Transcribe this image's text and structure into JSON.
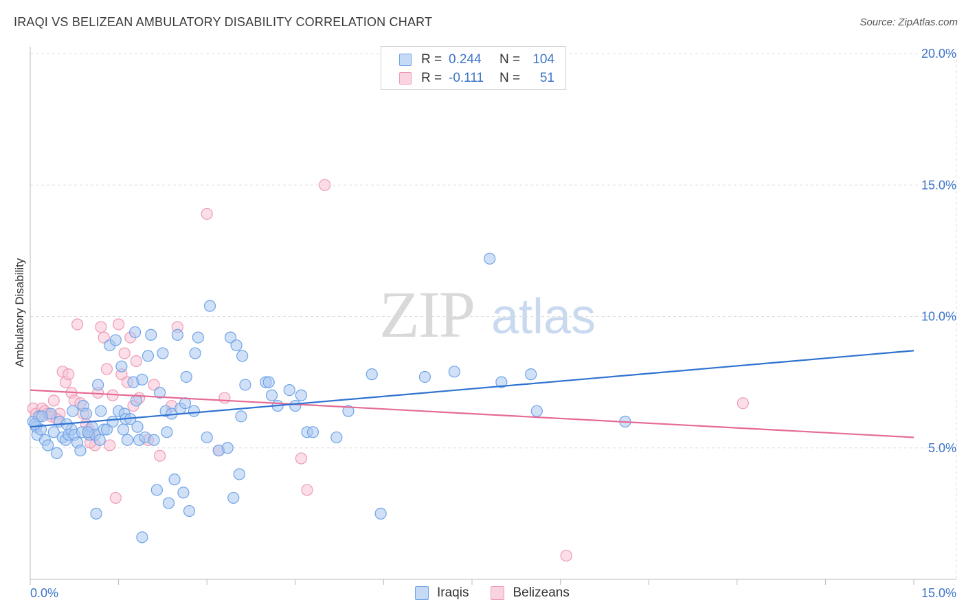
{
  "header": {
    "title": "IRAQI VS BELIZEAN AMBULATORY DISABILITY CORRELATION CHART",
    "source": "Source: ZipAtlas.com"
  },
  "watermark": {
    "zip": "ZIP",
    "atlas": "atlas"
  },
  "legend": {
    "rows": [
      {
        "r_label": "R =",
        "r_value": "0.244",
        "n_label": "N =",
        "n_value": "104",
        "color": "#6fa3e8"
      },
      {
        "r_label": "R =",
        "r_value": "-0.111",
        "n_label": "N =",
        "n_value": "51",
        "color": "#f19bb7"
      }
    ]
  },
  "bottom_legend": {
    "iraqis": "Iraqis",
    "belizeans": "Belizeans"
  },
  "colors": {
    "iraqi_fill": "#a9c8f0",
    "iraqi_stroke": "#6fa3e8",
    "iraqi_line": "#2f72d0",
    "belize_fill": "#f7c2d3",
    "belize_stroke": "#ee9ab6",
    "belize_line": "#e56a94",
    "grid": "#dcdcdc",
    "tick_text": "#3d74c9"
  },
  "chart_data": {
    "type": "scatter",
    "title": "IRAQI VS BELIZEAN AMBULATORY DISABILITY CORRELATION CHART",
    "xlabel": "",
    "ylabel": "Ambulatory Disability",
    "xlim": [
      0,
      15
    ],
    "ylim": [
      0,
      20
    ],
    "x_tick_labels": [
      "0.0%",
      "15.0%"
    ],
    "y_tick_values": [
      5,
      10,
      15,
      20
    ],
    "y_tick_labels": [
      "5.0%",
      "10.0%",
      "15.0%",
      "20.0%"
    ],
    "grid": true,
    "legend_position": "top-center",
    "series": [
      {
        "name": "Iraqis",
        "trend": {
          "x": [
            0,
            15
          ],
          "y": [
            5.8,
            8.7
          ]
        },
        "points": [
          [
            0.05,
            6.0
          ],
          [
            0.1,
            5.8
          ],
          [
            0.12,
            5.5
          ],
          [
            0.15,
            6.2
          ],
          [
            0.18,
            5.7
          ],
          [
            0.25,
            5.3
          ],
          [
            0.3,
            5.1
          ],
          [
            0.35,
            6.3
          ],
          [
            0.4,
            5.6
          ],
          [
            0.45,
            4.8
          ],
          [
            0.5,
            6.0
          ],
          [
            0.55,
            5.4
          ],
          [
            0.6,
            5.3
          ],
          [
            0.65,
            5.5
          ],
          [
            0.7,
            5.7
          ],
          [
            0.72,
            6.4
          ],
          [
            0.75,
            5.5
          ],
          [
            0.8,
            5.2
          ],
          [
            0.85,
            4.9
          ],
          [
            0.88,
            5.6
          ],
          [
            0.9,
            6.6
          ],
          [
            0.95,
            6.3
          ],
          [
            1.0,
            5.5
          ],
          [
            1.05,
            5.8
          ],
          [
            1.1,
            5.5
          ],
          [
            1.15,
            7.4
          ],
          [
            1.18,
            5.3
          ],
          [
            1.2,
            6.4
          ],
          [
            1.25,
            5.7
          ],
          [
            1.3,
            5.7
          ],
          [
            1.35,
            8.9
          ],
          [
            1.4,
            6.0
          ],
          [
            1.45,
            9.1
          ],
          [
            1.5,
            6.4
          ],
          [
            1.55,
            8.1
          ],
          [
            1.6,
            6.3
          ],
          [
            1.62,
            6.1
          ],
          [
            1.65,
            5.3
          ],
          [
            1.7,
            6.1
          ],
          [
            1.75,
            7.5
          ],
          [
            1.78,
            9.4
          ],
          [
            1.8,
            6.8
          ],
          [
            1.82,
            5.8
          ],
          [
            1.85,
            5.3
          ],
          [
            1.9,
            7.6
          ],
          [
            1.95,
            5.4
          ],
          [
            2.0,
            8.5
          ],
          [
            2.05,
            9.3
          ],
          [
            2.1,
            5.3
          ],
          [
            2.15,
            3.4
          ],
          [
            2.2,
            7.1
          ],
          [
            2.25,
            8.6
          ],
          [
            2.3,
            6.4
          ],
          [
            2.32,
            5.6
          ],
          [
            2.35,
            2.9
          ],
          [
            2.4,
            6.3
          ],
          [
            2.45,
            3.8
          ],
          [
            2.5,
            9.3
          ],
          [
            2.55,
            6.5
          ],
          [
            2.6,
            3.3
          ],
          [
            2.63,
            6.7
          ],
          [
            2.65,
            7.7
          ],
          [
            2.7,
            2.6
          ],
          [
            2.8,
            8.6
          ],
          [
            2.85,
            9.2
          ],
          [
            3.0,
            5.4
          ],
          [
            3.05,
            10.4
          ],
          [
            3.2,
            4.9
          ],
          [
            3.4,
            9.2
          ],
          [
            3.45,
            3.1
          ],
          [
            3.5,
            8.9
          ],
          [
            3.55,
            4.0
          ],
          [
            3.58,
            6.2
          ],
          [
            3.6,
            8.5
          ],
          [
            3.65,
            7.4
          ],
          [
            4.0,
            7.5
          ],
          [
            4.05,
            7.5
          ],
          [
            4.1,
            7.0
          ],
          [
            4.2,
            6.6
          ],
          [
            4.4,
            7.2
          ],
          [
            4.5,
            6.6
          ],
          [
            4.6,
            7.0
          ],
          [
            4.7,
            5.6
          ],
          [
            4.8,
            5.6
          ],
          [
            5.2,
            5.4
          ],
          [
            5.4,
            6.4
          ],
          [
            5.8,
            7.8
          ],
          [
            5.95,
            2.5
          ],
          [
            6.7,
            7.7
          ],
          [
            7.2,
            7.9
          ],
          [
            7.8,
            12.2
          ],
          [
            8.0,
            7.5
          ],
          [
            8.5,
            7.8
          ],
          [
            8.6,
            6.4
          ],
          [
            10.1,
            6.0
          ],
          [
            0.2,
            6.2
          ],
          [
            0.08,
            5.9
          ],
          [
            1.12,
            2.5
          ],
          [
            1.9,
            1.6
          ],
          [
            0.62,
            5.9
          ],
          [
            0.98,
            5.6
          ],
          [
            1.58,
            5.7
          ],
          [
            2.78,
            6.4
          ],
          [
            3.35,
            5.0
          ]
        ]
      },
      {
        "name": "Belizeans",
        "trend": {
          "x": [
            0,
            15
          ],
          "y": [
            7.2,
            5.4
          ]
        },
        "points": [
          [
            0.05,
            6.5
          ],
          [
            0.1,
            6.3
          ],
          [
            0.15,
            6.2
          ],
          [
            0.2,
            6.5
          ],
          [
            0.25,
            6.4
          ],
          [
            0.3,
            6.3
          ],
          [
            0.35,
            6.2
          ],
          [
            0.4,
            6.8
          ],
          [
            0.5,
            6.3
          ],
          [
            0.55,
            7.9
          ],
          [
            0.6,
            7.5
          ],
          [
            0.65,
            7.8
          ],
          [
            0.7,
            7.1
          ],
          [
            0.75,
            6.8
          ],
          [
            0.8,
            9.7
          ],
          [
            0.85,
            6.7
          ],
          [
            0.9,
            6.3
          ],
          [
            0.95,
            5.9
          ],
          [
            1.0,
            5.7
          ],
          [
            1.05,
            5.5
          ],
          [
            1.1,
            5.1
          ],
          [
            1.15,
            7.1
          ],
          [
            1.2,
            9.6
          ],
          [
            1.25,
            9.2
          ],
          [
            1.3,
            8.0
          ],
          [
            1.35,
            5.1
          ],
          [
            1.4,
            7.0
          ],
          [
            1.45,
            3.1
          ],
          [
            1.5,
            9.7
          ],
          [
            1.55,
            7.8
          ],
          [
            1.6,
            8.6
          ],
          [
            1.65,
            7.5
          ],
          [
            1.7,
            9.2
          ],
          [
            1.75,
            6.6
          ],
          [
            1.8,
            8.3
          ],
          [
            1.85,
            6.9
          ],
          [
            2.0,
            5.3
          ],
          [
            2.1,
            7.4
          ],
          [
            2.2,
            4.7
          ],
          [
            2.4,
            6.6
          ],
          [
            2.5,
            9.6
          ],
          [
            3.0,
            13.9
          ],
          [
            3.2,
            4.9
          ],
          [
            3.3,
            6.9
          ],
          [
            4.6,
            4.6
          ],
          [
            4.7,
            3.4
          ],
          [
            5.0,
            15.0
          ],
          [
            9.1,
            0.9
          ],
          [
            12.1,
            6.7
          ],
          [
            0.45,
            6.1
          ],
          [
            1.02,
            5.2
          ]
        ]
      }
    ]
  }
}
